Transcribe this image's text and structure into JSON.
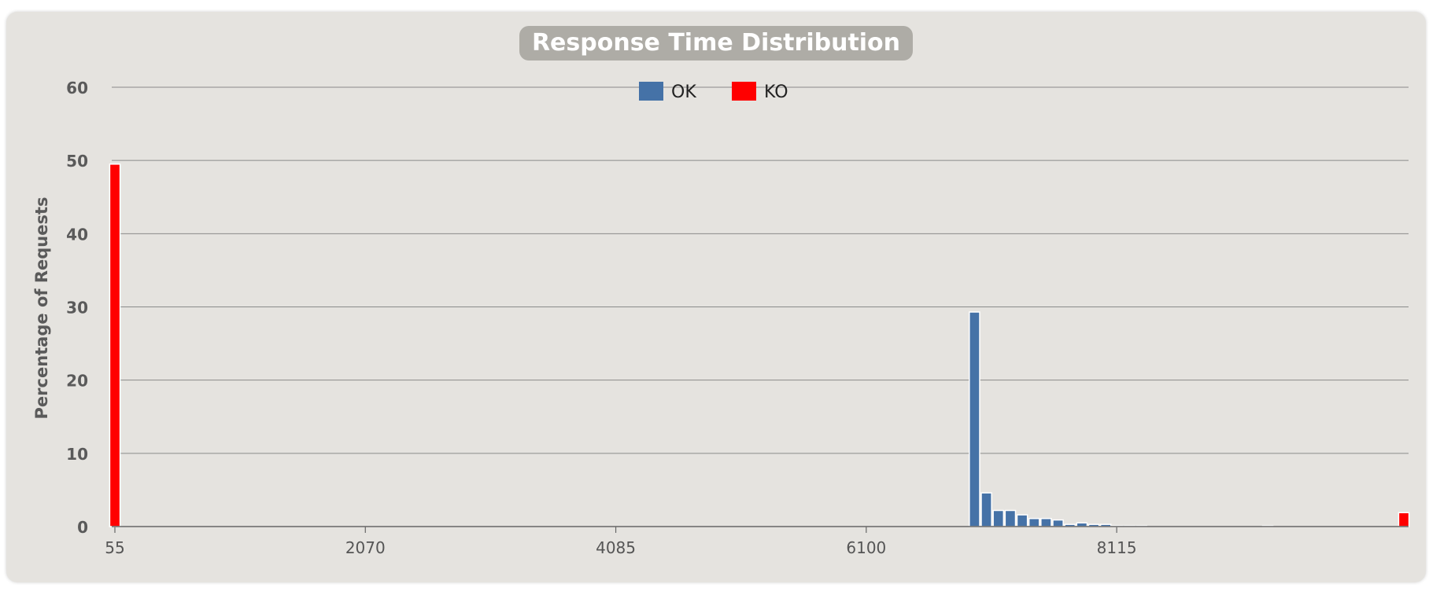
{
  "chart_data": {
    "type": "bar",
    "title": "Response Time Distribution",
    "ylabel": "Percentage of Requests",
    "xlabel": "",
    "xlim": [
      55,
      10425
    ],
    "ylim": [
      0,
      60
    ],
    "yticks": [
      0,
      10,
      20,
      30,
      40,
      50,
      60
    ],
    "xticks": [
      55,
      2070,
      4085,
      6100,
      8115
    ],
    "grid": true,
    "legend": "top-center",
    "bar_width": 96,
    "series": [
      {
        "name": "OK",
        "color": "#4572a7",
        "points": [
          {
            "x": 55,
            "y": 0.1
          },
          {
            "x": 6971,
            "y": 29.3
          },
          {
            "x": 7067,
            "y": 4.6
          },
          {
            "x": 7163,
            "y": 2.2
          },
          {
            "x": 7259,
            "y": 2.2
          },
          {
            "x": 7355,
            "y": 1.6
          },
          {
            "x": 7451,
            "y": 1.1
          },
          {
            "x": 7547,
            "y": 1.1
          },
          {
            "x": 7643,
            "y": 0.9
          },
          {
            "x": 7739,
            "y": 0.3
          },
          {
            "x": 7835,
            "y": 0.5
          },
          {
            "x": 7931,
            "y": 0.3
          },
          {
            "x": 8027,
            "y": 0.3
          },
          {
            "x": 8123,
            "y": 0.1
          },
          {
            "x": 8219,
            "y": 0.1
          },
          {
            "x": 8315,
            "y": 0.1
          },
          {
            "x": 9330,
            "y": 0.1
          }
        ]
      },
      {
        "name": "KO",
        "color": "#ff0000",
        "points": [
          {
            "x": 55,
            "y": 49.5
          },
          {
            "x": 10425,
            "y": 1.9
          }
        ]
      }
    ]
  }
}
